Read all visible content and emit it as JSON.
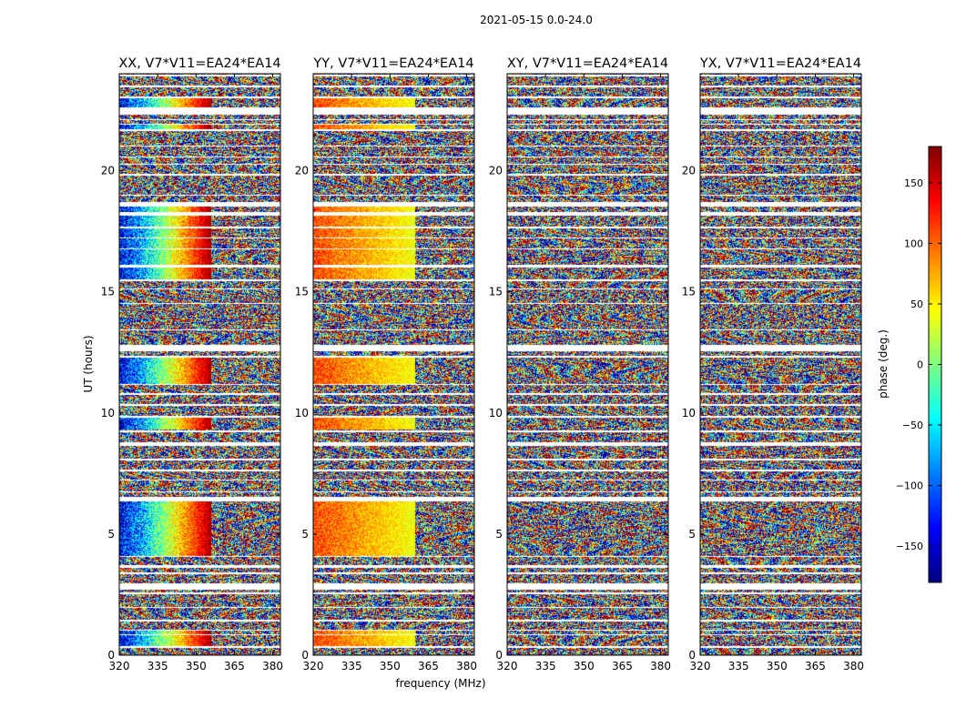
{
  "figure": {
    "suptitle": "2021-05-15 0.0-24.0",
    "xlabel": "frequency (MHz)",
    "ylabel": "UT (hours)"
  },
  "colors": {
    "axis": "#000000",
    "gap": "#ffffff",
    "background": "#ffffff"
  },
  "chart_data": [
    {
      "type": "heatmap",
      "title": "XX, V7*V11=EA24*EA14",
      "xlim": [
        320,
        383
      ],
      "ylim": [
        0,
        24
      ],
      "xticks": [
        320,
        335,
        350,
        365,
        380
      ],
      "yticks": [
        0,
        5,
        10,
        15,
        20
      ],
      "value": "phase (deg.)",
      "gradient_band_mhz": [
        320,
        356
      ],
      "gradient_phase_deg": [
        -150,
        170
      ]
    },
    {
      "type": "heatmap",
      "title": "YY, V7*V11=EA24*EA14",
      "xlim": [
        320,
        383
      ],
      "ylim": [
        0,
        24
      ],
      "xticks": [
        320,
        335,
        350,
        365,
        380
      ],
      "yticks": [
        0,
        5,
        10,
        15,
        20
      ],
      "value": "phase (deg.)",
      "gradient_band_mhz": [
        320,
        360
      ],
      "gradient_phase_deg": [
        110,
        40
      ]
    },
    {
      "type": "heatmap",
      "title": "XY, V7*V11=EA24*EA14",
      "xlim": [
        320,
        383
      ],
      "ylim": [
        0,
        24
      ],
      "xticks": [
        320,
        335,
        350,
        365,
        380
      ],
      "yticks": [
        0,
        5,
        10,
        15,
        20
      ],
      "value": "phase (deg.)"
    },
    {
      "type": "heatmap",
      "title": "YX, V7*V11=EA24*EA14",
      "xlim": [
        320,
        383
      ],
      "ylim": [
        0,
        24
      ],
      "xticks": [
        320,
        335,
        350,
        365,
        380
      ],
      "yticks": [
        0,
        5,
        10,
        15,
        20
      ],
      "value": "phase (deg.)"
    }
  ],
  "colorbar": {
    "label": "phase (deg.)",
    "range": [
      -180,
      180
    ],
    "ticks": [
      150,
      100,
      50,
      0,
      -50,
      -100,
      -150
    ],
    "tick_labels": [
      "150",
      "100",
      "50",
      "0",
      "−50",
      "−100",
      "−150"
    ],
    "colormap": "jet"
  },
  "gaps_hours": [
    [
      0.3,
      0.36
    ],
    [
      0.82,
      0.86
    ],
    [
      1.02,
      1.07
    ],
    [
      1.4,
      1.46
    ],
    [
      1.95,
      2.0
    ],
    [
      2.5,
      2.6
    ],
    [
      2.7,
      2.95
    ],
    [
      3.35,
      3.4
    ],
    [
      3.6,
      3.7
    ],
    [
      4.05,
      4.1
    ],
    [
      6.35,
      6.55
    ],
    [
      6.72,
      6.76
    ],
    [
      7.2,
      7.25
    ],
    [
      7.6,
      7.66
    ],
    [
      8.05,
      8.1
    ],
    [
      8.65,
      8.8
    ],
    [
      9.2,
      9.26
    ],
    [
      9.82,
      9.86
    ],
    [
      10.3,
      10.35
    ],
    [
      10.75,
      10.8
    ],
    [
      11.15,
      11.2
    ],
    [
      12.3,
      12.35
    ],
    [
      12.55,
      12.8
    ],
    [
      13.4,
      13.45
    ],
    [
      14.5,
      14.55
    ],
    [
      15.1,
      15.15
    ],
    [
      15.45,
      15.5
    ],
    [
      16.0,
      16.1
    ],
    [
      16.75,
      16.8
    ],
    [
      17.2,
      17.25
    ],
    [
      17.6,
      17.7
    ],
    [
      18.15,
      18.3
    ],
    [
      18.5,
      18.7
    ],
    [
      18.95,
      19.0
    ],
    [
      19.8,
      19.86
    ],
    [
      20.25,
      20.3
    ],
    [
      20.55,
      20.6
    ],
    [
      21.0,
      21.05
    ],
    [
      21.65,
      21.7
    ],
    [
      21.9,
      21.95
    ],
    [
      22.1,
      22.14
    ],
    [
      22.3,
      22.6
    ],
    [
      23.0,
      23.05
    ],
    [
      23.45,
      23.5
    ],
    [
      23.9,
      23.95
    ]
  ],
  "gradient_blocks_hours": [
    [
      0.36,
      0.82
    ],
    [
      0.86,
      1.02
    ],
    [
      4.1,
      6.35
    ],
    [
      9.3,
      9.82
    ],
    [
      11.2,
      12.3
    ],
    [
      15.5,
      16.0
    ],
    [
      16.1,
      18.15
    ],
    [
      18.3,
      18.5
    ],
    [
      21.7,
      21.9
    ],
    [
      22.6,
      23.0
    ]
  ]
}
